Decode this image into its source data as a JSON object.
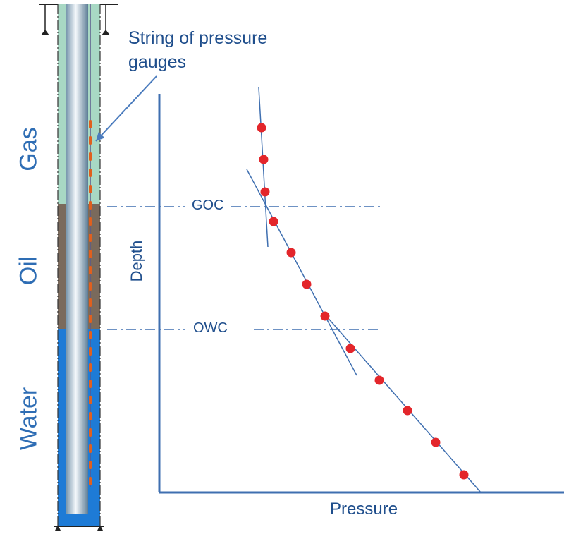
{
  "annotation": {
    "line1": "String of pressure",
    "line2": "gauges"
  },
  "zones": {
    "gas": "Gas",
    "oil": "Oil",
    "water": "Water"
  },
  "contacts": {
    "goc": "GOC",
    "owc": "OWC"
  },
  "axes": {
    "y": "Depth",
    "x": "Pressure"
  },
  "colors": {
    "gas": "#a8d8c4",
    "oil": "#7a6a5c",
    "water": "#1e7bd6",
    "text": "#1f4e8c",
    "zone_text": "#2e6db4",
    "line": "#3f6fb0",
    "point": "#e3262b",
    "gauge": "#e0601e",
    "arrow": "#4a7bbd"
  }
}
